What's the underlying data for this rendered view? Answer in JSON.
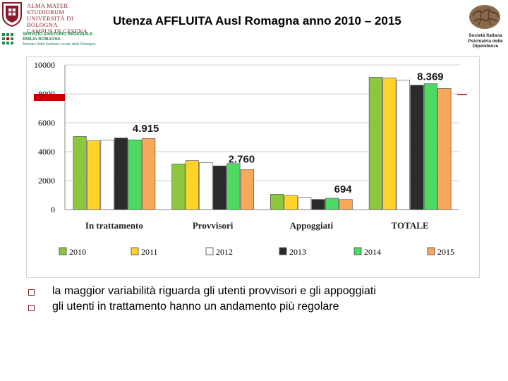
{
  "header": {
    "title": "Utenza AFFLUITA Ausl Romagna anno 2010 – 2015",
    "university_lines": [
      "ALMA MATER STUDIORUM",
      "UNIVERSITÀ DI BOLOGNA",
      "CAMPUS DI CESENA"
    ],
    "region_lines": [
      "SERVIZIO SANITARIO REGIONALE",
      "EMILIA-ROMAGNA"
    ],
    "region_small": "Azienda Unità Sanitaria Locale della Romagna",
    "society_lines": [
      "Società Italiana",
      "Psichiatria delle",
      "Dipendenze"
    ]
  },
  "colors": {
    "2010": "#8dc63f",
    "2011": "#ffd42a",
    "2012": "#ffffff",
    "2013": "#2b2b2b",
    "2014": "#4cd964",
    "2015": "#f7a85a",
    "accent_red": "#c00000",
    "grid": "#cfcfcf"
  },
  "chart_data": {
    "type": "bar",
    "categories": [
      "In trattamento",
      "Provvisori",
      "Appoggiati",
      "TOTALE"
    ],
    "series": [
      {
        "name": "2010",
        "values": [
          5050,
          3150,
          1050,
          9150
        ]
      },
      {
        "name": "2011",
        "values": [
          4750,
          3380,
          980,
          9100
        ]
      },
      {
        "name": "2012",
        "values": [
          4800,
          3250,
          850,
          8950
        ]
      },
      {
        "name": "2013",
        "values": [
          4950,
          3020,
          700,
          8600
        ]
      },
      {
        "name": "2014",
        "values": [
          4820,
          3180,
          780,
          8700
        ]
      },
      {
        "name": "2015",
        "values": [
          4915,
          2760,
          694,
          8369
        ]
      }
    ],
    "data_labels": [
      "4.915",
      "2.760",
      "694",
      "8.369"
    ],
    "y_ticks": [
      "10000",
      "8000",
      "6000",
      "4000",
      "2000",
      "0"
    ],
    "ylim": [
      0,
      10000
    ],
    "title": "",
    "xlabel": "",
    "ylabel": "",
    "legend_position": "bottom"
  },
  "notes": [
    "la maggior variabilità riguarda gli utenti provvisori e gli appoggiati",
    "gli utenti in trattamento hanno un andamento più regolare"
  ]
}
